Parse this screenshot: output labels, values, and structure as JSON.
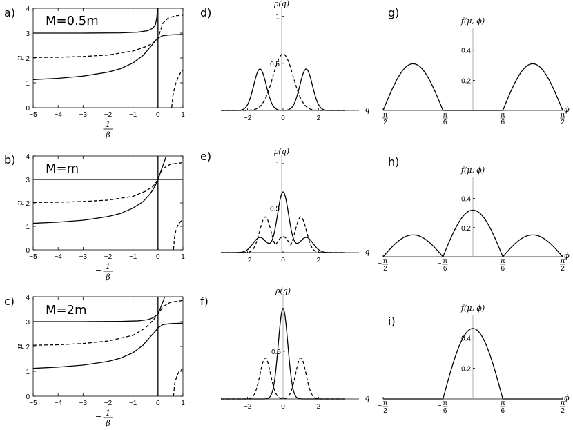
{
  "chart_data": [
    {
      "id": "a",
      "panel_label": "a)",
      "annotation": "M=0.5m",
      "type": "line",
      "ylabel": "μ",
      "xlabel_minus": "−",
      "xlabel_num": "1",
      "xlabel_den": "β",
      "xlim": [
        -5,
        1
      ],
      "ylim": [
        0,
        4
      ],
      "xticks": [
        -5,
        -4,
        -3,
        -2,
        -1,
        0,
        1
      ],
      "yticks": [
        0,
        1,
        2,
        3,
        4
      ],
      "series": [
        {
          "style": "solid",
          "points": [
            [
              -5,
              3.0
            ],
            [
              -3,
              3.0
            ],
            [
              -1.5,
              3.01
            ],
            [
              -0.8,
              3.04
            ],
            [
              -0.4,
              3.1
            ],
            [
              -0.2,
              3.2
            ],
            [
              -0.1,
              3.35
            ],
            [
              -0.05,
              3.6
            ],
            [
              -0.02,
              4.0
            ]
          ]
        },
        {
          "style": "solid",
          "points": [
            [
              -5,
              1.13
            ],
            [
              -4,
              1.18
            ],
            [
              -3,
              1.27
            ],
            [
              -2,
              1.43
            ],
            [
              -1.5,
              1.57
            ],
            [
              -1,
              1.8
            ],
            [
              -0.6,
              2.1
            ],
            [
              -0.3,
              2.45
            ],
            [
              -0.1,
              2.7
            ],
            [
              0,
              2.8
            ],
            [
              0.2,
              2.9
            ],
            [
              0.5,
              2.93
            ],
            [
              1,
              2.95
            ]
          ]
        },
        {
          "style": "dashed",
          "points": [
            [
              -5,
              2.02
            ],
            [
              -4,
              2.03
            ],
            [
              -3,
              2.06
            ],
            [
              -2,
              2.12
            ],
            [
              -1,
              2.28
            ],
            [
              -0.5,
              2.45
            ],
            [
              -0.2,
              2.6
            ],
            [
              0,
              2.8
            ],
            [
              0.1,
              3.1
            ],
            [
              0.2,
              3.4
            ],
            [
              0.4,
              3.6
            ],
            [
              0.7,
              3.7
            ],
            [
              1,
              3.72
            ]
          ]
        },
        {
          "style": "dashed",
          "points": [
            [
              0.55,
              0.0
            ],
            [
              0.6,
              0.5
            ],
            [
              0.7,
              0.95
            ],
            [
              0.8,
              1.2
            ],
            [
              0.9,
              1.4
            ],
            [
              1,
              1.5
            ]
          ]
        }
      ]
    },
    {
      "id": "d",
      "panel_label": "d)",
      "type": "line",
      "ylabel": "ρ(q)",
      "xlabel": "q",
      "xlim": [
        -3.5,
        3.5
      ],
      "ylim": [
        0,
        1.1
      ],
      "xticks": [
        -2,
        0,
        2
      ],
      "yticks": [
        0.5,
        1
      ],
      "series": [
        {
          "style": "solid",
          "function": "double_peak",
          "center": 1.3,
          "width": 0.5,
          "height": 0.44
        },
        {
          "style": "dashed",
          "function": "gaussian",
          "width": 0.8,
          "height": 0.6
        }
      ]
    },
    {
      "id": "g",
      "panel_label": "g)",
      "type": "line",
      "ylabel": "f(μ, ϕ)",
      "xlabel": "ϕ",
      "xlim": [
        -90,
        90
      ],
      "ylim": [
        0,
        0.55
      ],
      "xticks": [
        {
          "pos": -90,
          "num": "π",
          "den": "2",
          "neg": true
        },
        {
          "pos": -30,
          "num": "π",
          "den": "6",
          "neg": true
        },
        {
          "pos": 30,
          "num": "π",
          "den": "6",
          "neg": false
        },
        {
          "pos": 90,
          "num": "π",
          "den": "2",
          "neg": false
        }
      ],
      "yticks": [
        0.2,
        0.4
      ],
      "series": [
        {
          "style": "solid",
          "function": "arches",
          "arches": [
            {
              "from": -90,
              "to": -30,
              "h": 0.31
            },
            {
              "from": 30,
              "to": 90,
              "h": 0.31
            }
          ]
        }
      ]
    },
    {
      "id": "b",
      "panel_label": "b)",
      "annotation": "M=m",
      "type": "line",
      "ylabel": "μ",
      "xlabel_minus": "−",
      "xlabel_num": "1",
      "xlabel_den": "β",
      "xlim": [
        -5,
        1
      ],
      "ylim": [
        0,
        4
      ],
      "xticks": [
        -5,
        -4,
        -3,
        -2,
        -1,
        0,
        1
      ],
      "yticks": [
        0,
        1,
        2,
        3,
        4
      ],
      "series": [
        {
          "style": "solid",
          "points": [
            [
              -5,
              3.0
            ],
            [
              1,
              3.0
            ]
          ]
        },
        {
          "style": "solid",
          "points": [
            [
              -5,
              1.13
            ],
            [
              -4,
              1.18
            ],
            [
              -3,
              1.26
            ],
            [
              -2,
              1.42
            ],
            [
              -1.5,
              1.55
            ],
            [
              -1,
              1.78
            ],
            [
              -0.6,
              2.05
            ],
            [
              -0.3,
              2.4
            ],
            [
              -0.1,
              2.75
            ],
            [
              0,
              3.0
            ],
            [
              0.1,
              3.3
            ],
            [
              0.2,
              3.6
            ],
            [
              0.3,
              3.9
            ],
            [
              0.33,
              4.0
            ]
          ]
        },
        {
          "style": "dashed",
          "points": [
            [
              -5,
              2.02
            ],
            [
              -4,
              2.03
            ],
            [
              -3,
              2.06
            ],
            [
              -2,
              2.12
            ],
            [
              -1,
              2.28
            ],
            [
              -0.5,
              2.5
            ],
            [
              -0.2,
              2.7
            ],
            [
              0,
              3.0
            ],
            [
              0.1,
              3.3
            ],
            [
              0.25,
              3.5
            ],
            [
              0.5,
              3.65
            ],
            [
              1,
              3.72
            ]
          ]
        },
        {
          "style": "dashed",
          "points": [
            [
              0.62,
              0.0
            ],
            [
              0.66,
              0.5
            ],
            [
              0.72,
              0.85
            ],
            [
              0.8,
              1.05
            ],
            [
              0.9,
              1.2
            ],
            [
              1,
              1.3
            ]
          ]
        }
      ]
    },
    {
      "id": "e",
      "panel_label": "e)",
      "type": "line",
      "ylabel": "ρ(q)",
      "xlabel": "q",
      "xlim": [
        -3.5,
        3.5
      ],
      "ylim": [
        0,
        1.1
      ],
      "xticks": [
        -2,
        0,
        2
      ],
      "yticks": [
        0.5,
        1
      ],
      "series": [
        {
          "style": "solid",
          "function": "central_with_shoulders",
          "height": 0.68
        },
        {
          "style": "dashed",
          "function": "double_peak",
          "center": 1.0,
          "width": 0.45,
          "height": 0.4,
          "floor": 0.18
        }
      ]
    },
    {
      "id": "h",
      "panel_label": "h)",
      "type": "line",
      "ylabel": "f(μ, ϕ)",
      "xlabel": "ϕ",
      "xlim": [
        -90,
        90
      ],
      "ylim": [
        0,
        0.55
      ],
      "xticks": [
        {
          "pos": -90,
          "num": "π",
          "den": "2",
          "neg": true
        },
        {
          "pos": -30,
          "num": "π",
          "den": "6",
          "neg": true
        },
        {
          "pos": 30,
          "num": "π",
          "den": "6",
          "neg": false
        },
        {
          "pos": 90,
          "num": "π",
          "den": "2",
          "neg": false
        }
      ],
      "yticks": [
        0.2,
        0.4
      ],
      "series": [
        {
          "style": "solid",
          "function": "arches",
          "arches": [
            {
              "from": -90,
              "to": -30,
              "h": 0.15
            },
            {
              "from": -30,
              "to": 30,
              "h": 0.32
            },
            {
              "from": 30,
              "to": 90,
              "h": 0.15
            }
          ]
        }
      ]
    },
    {
      "id": "c",
      "panel_label": "c)",
      "annotation": "M=2m",
      "type": "line",
      "ylabel": "μ",
      "xlabel_minus": "−",
      "xlabel_num": "1",
      "xlabel_den": "β",
      "xlim": [
        -5,
        1
      ],
      "ylim": [
        0,
        4
      ],
      "xticks": [
        -5,
        -4,
        -3,
        -2,
        -1,
        0,
        1
      ],
      "yticks": [
        0,
        1,
        2,
        3,
        4
      ],
      "series": [
        {
          "style": "solid",
          "points": [
            [
              -5,
              3.0
            ],
            [
              -3,
              3.0
            ],
            [
              -1.5,
              3.01
            ],
            [
              -0.8,
              3.03
            ],
            [
              -0.4,
              3.08
            ],
            [
              -0.2,
              3.15
            ],
            [
              0,
              3.3
            ],
            [
              0.1,
              3.55
            ],
            [
              0.2,
              3.8
            ],
            [
              0.27,
              4.0
            ]
          ]
        },
        {
          "style": "solid",
          "points": [
            [
              -5,
              1.12
            ],
            [
              -4,
              1.17
            ],
            [
              -3,
              1.25
            ],
            [
              -2,
              1.4
            ],
            [
              -1.5,
              1.53
            ],
            [
              -1,
              1.75
            ],
            [
              -0.6,
              2.05
            ],
            [
              -0.3,
              2.4
            ],
            [
              -0.1,
              2.62
            ],
            [
              0,
              2.75
            ],
            [
              0.2,
              2.88
            ],
            [
              0.5,
              2.92
            ],
            [
              1,
              2.94
            ]
          ]
        },
        {
          "style": "dashed",
          "points": [
            [
              -5,
              2.05
            ],
            [
              -4,
              2.07
            ],
            [
              -3,
              2.12
            ],
            [
              -2,
              2.22
            ],
            [
              -1,
              2.45
            ],
            [
              -0.5,
              2.75
            ],
            [
              -0.2,
              3.05
            ],
            [
              0,
              3.3
            ],
            [
              0.2,
              3.6
            ],
            [
              0.5,
              3.78
            ],
            [
              1,
              3.85
            ]
          ]
        },
        {
          "style": "dashed",
          "points": [
            [
              0.62,
              0.0
            ],
            [
              0.67,
              0.5
            ],
            [
              0.75,
              0.8
            ],
            [
              0.85,
              1.0
            ],
            [
              1,
              1.1
            ]
          ]
        }
      ]
    },
    {
      "id": "f",
      "panel_label": "f)",
      "type": "line",
      "ylabel": "ρ(q)",
      "xlabel": "q",
      "xlim": [
        -3.5,
        3.5
      ],
      "ylim": [
        0,
        1.1
      ],
      "xticks": [
        -2,
        0,
        2
      ],
      "yticks": [
        0.5
      ],
      "series": [
        {
          "style": "solid",
          "function": "gaussian",
          "width": 0.38,
          "height": 0.95
        },
        {
          "style": "dashed",
          "function": "double_peak",
          "center": 1.0,
          "width": 0.42,
          "height": 0.43
        }
      ]
    },
    {
      "id": "i",
      "panel_label": "i)",
      "type": "line",
      "ylabel": "f(μ, ϕ)",
      "xlabel": "ϕ",
      "xlim": [
        -90,
        90
      ],
      "ylim": [
        0,
        0.55
      ],
      "xticks": [
        {
          "pos": -90,
          "num": "π",
          "den": "2",
          "neg": true
        },
        {
          "pos": -30,
          "num": "π",
          "den": "6",
          "neg": true
        },
        {
          "pos": 30,
          "num": "π",
          "den": "6",
          "neg": false
        },
        {
          "pos": 90,
          "num": "π",
          "den": "2",
          "neg": false
        }
      ],
      "yticks": [
        0.2,
        0.4
      ],
      "series": [
        {
          "style": "solid",
          "function": "arches",
          "arches": [
            {
              "from": -30,
              "to": 30,
              "h": 0.46
            }
          ]
        }
      ]
    }
  ]
}
